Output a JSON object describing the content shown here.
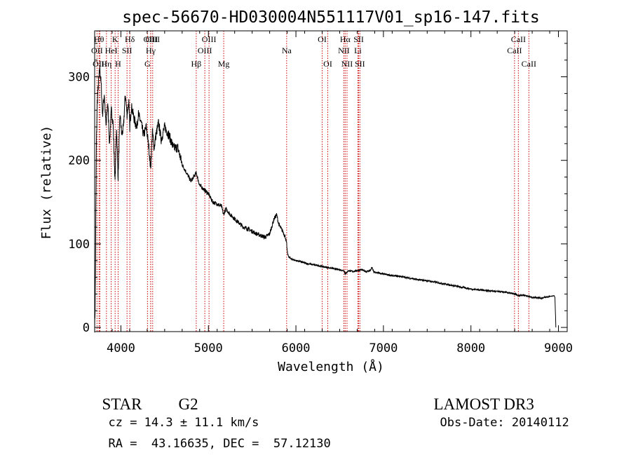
{
  "chart_data": {
    "type": "line",
    "title": "spec-56670-HD030004N551117V01_sp16-147.fits",
    "xlabel": "Wavelength (Å)",
    "ylabel": "Flux (relative)",
    "xlim": [
      3700,
      9100
    ],
    "ylim": [
      -5,
      355
    ],
    "xticks": [
      4000,
      5000,
      6000,
      7000,
      8000,
      9000
    ],
    "yticks": [
      0,
      100,
      200,
      300
    ],
    "xtick_labels": [
      "4000",
      "5000",
      "6000",
      "7000",
      "8000",
      "9000"
    ],
    "ytick_labels": [
      "0",
      "100",
      "200",
      "300"
    ],
    "grid": false,
    "series": [
      {
        "name": "spectrum",
        "x": [
          3700,
          3705,
          3712,
          3720,
          3730,
          3745,
          3760,
          3775,
          3790,
          3810,
          3830,
          3850,
          3870,
          3890,
          3910,
          3933,
          3950,
          3968,
          3990,
          4010,
          4030,
          4050,
          4070,
          4090,
          4101,
          4120,
          4150,
          4180,
          4200,
          4230,
          4260,
          4290,
          4320,
          4340,
          4360,
          4380,
          4400,
          4430,
          4460,
          4500,
          4550,
          4600,
          4650,
          4700,
          4750,
          4800,
          4861,
          4900,
          4950,
          5000,
          5050,
          5100,
          5150,
          5172,
          5200,
          5250,
          5300,
          5350,
          5400,
          5450,
          5500,
          5550,
          5600,
          5650,
          5700,
          5750,
          5780,
          5800,
          5820,
          5850,
          5880,
          5893,
          5905,
          5920,
          5950,
          6000,
          6050,
          6100,
          6150,
          6200,
          6250,
          6300,
          6350,
          6400,
          6450,
          6500,
          6550,
          6563,
          6580,
          6600,
          6650,
          6700,
          6750,
          6800,
          6850,
          6870,
          6890,
          6950,
          7000,
          7100,
          7200,
          7300,
          7400,
          7500,
          7600,
          7700,
          7800,
          7900,
          8000,
          8100,
          8200,
          8300,
          8400,
          8500,
          8542,
          8600,
          8662,
          8700,
          8750,
          8800,
          8850,
          8900,
          8950,
          8960,
          8965,
          8970
        ],
        "y": [
          0,
          20,
          110,
          220,
          270,
          295,
          310,
          290,
          255,
          280,
          240,
          270,
          220,
          260,
          245,
          175,
          240,
          180,
          255,
          230,
          240,
          280,
          255,
          270,
          240,
          265,
          250,
          240,
          255,
          245,
          230,
          240,
          215,
          190,
          235,
          215,
          230,
          245,
          225,
          240,
          230,
          215,
          215,
          195,
          185,
          175,
          185,
          170,
          165,
          160,
          150,
          148,
          145,
          135,
          142,
          135,
          130,
          125,
          120,
          118,
          115,
          112,
          110,
          108,
          112,
          130,
          135,
          125,
          120,
          115,
          108,
          100,
          88,
          84,
          82,
          80,
          79,
          77,
          76,
          75,
          74,
          73,
          72,
          71,
          70,
          69,
          68,
          64,
          66,
          68,
          67,
          68,
          69,
          67,
          68,
          72,
          66,
          65,
          64,
          62,
          61,
          59,
          57,
          56,
          54,
          52,
          50,
          48,
          46,
          45,
          44,
          43,
          42,
          40,
          38,
          39,
          37,
          36,
          36,
          35,
          36,
          37,
          38,
          36,
          20,
          0
        ]
      }
    ],
    "line_markers": [
      {
        "label": "OII",
        "x": 3727,
        "row": 2
      },
      {
        "label": "Hθ",
        "x": 3750,
        "row": 1
      },
      {
        "label": "OIII",
        "x": 3760,
        "row": 3
      },
      {
        "label": "Hη",
        "x": 3835,
        "row": 3
      },
      {
        "label": "HeI",
        "x": 3889,
        "row": 2
      },
      {
        "label": "K",
        "x": 3934,
        "row": 1
      },
      {
        "label": "H",
        "x": 3968,
        "row": 3
      },
      {
        "label": "SII",
        "x": 4070,
        "row": 2
      },
      {
        "label": "Hδ",
        "x": 4102,
        "row": 1
      },
      {
        "label": "G",
        "x": 4304,
        "row": 3
      },
      {
        "label": "OIII",
        "x": 4340,
        "row": 1
      },
      {
        "label": "Hγ",
        "x": 4341,
        "row": 2
      },
      {
        "label": "OIII",
        "x": 4363,
        "row": 0
      },
      {
        "label": "Hβ",
        "x": 4861,
        "row": 3
      },
      {
        "label": "OIII",
        "x": 4959,
        "row": 2
      },
      {
        "label": "OIII",
        "x": 5007,
        "row": 1
      },
      {
        "label": "Mg",
        "x": 5175,
        "row": 3
      },
      {
        "label": "Na",
        "x": 5894,
        "row": 2
      },
      {
        "label": "OI",
        "x": 6300,
        "row": 1
      },
      {
        "label": "OI",
        "x": 6364,
        "row": 3
      },
      {
        "label": "NII",
        "x": 6548,
        "row": 2
      },
      {
        "label": "Hα",
        "x": 6563,
        "row": 1
      },
      {
        "label": "NII",
        "x": 6584,
        "row": 3
      },
      {
        "label": "Li",
        "x": 6708,
        "row": 2
      },
      {
        "label": "SII",
        "x": 6717,
        "row": 1
      },
      {
        "label": "SII",
        "x": 6731,
        "row": 3
      },
      {
        "label": "CaII",
        "x": 8498,
        "row": 2
      },
      {
        "label": "CaII",
        "x": 8542,
        "row": 1
      },
      {
        "label": "CaII",
        "x": 8662,
        "row": 3
      }
    ]
  },
  "info": {
    "object_class": "STAR",
    "subclass": "G2",
    "survey": "LAMOST DR3",
    "redshift": "cz = 14.3 ± 11.1 km/s",
    "obs_date": "Obs-Date: 20140112",
    "coords": "RA =  43.16635, DEC =  57.12130"
  },
  "colors": {
    "line": "#000000",
    "marker": "#cc0000",
    "background": "#ffffff"
  }
}
